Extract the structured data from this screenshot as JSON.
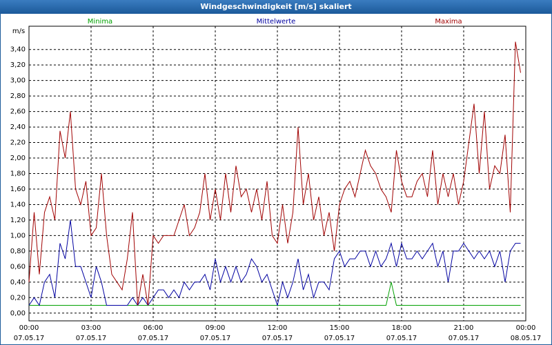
{
  "chart_data": {
    "type": "line",
    "title": "Windgeschwindigkeit [m/s] skaliert",
    "y_unit": "m/s",
    "x": [
      0,
      0.25,
      0.5,
      0.75,
      1,
      1.25,
      1.5,
      1.75,
      2,
      2.25,
      2.5,
      2.75,
      3,
      3.25,
      3.5,
      3.75,
      4,
      4.25,
      4.5,
      4.75,
      5,
      5.25,
      5.5,
      5.75,
      6,
      6.25,
      6.5,
      6.75,
      7,
      7.25,
      7.5,
      7.75,
      8,
      8.25,
      8.5,
      8.75,
      9,
      9.25,
      9.5,
      9.75,
      10,
      10.25,
      10.5,
      10.75,
      11,
      11.25,
      11.5,
      11.75,
      12,
      12.25,
      12.5,
      12.75,
      13,
      13.25,
      13.5,
      13.75,
      14,
      14.25,
      14.5,
      14.75,
      15,
      15.25,
      15.5,
      15.75,
      16,
      16.25,
      16.5,
      16.75,
      17,
      17.25,
      17.5,
      17.75,
      18,
      18.25,
      18.5,
      18.75,
      19,
      19.25,
      19.5,
      19.75,
      20,
      20.25,
      20.5,
      20.75,
      21,
      21.25,
      21.5,
      21.75,
      22,
      22.25,
      22.5,
      22.75,
      23,
      23.25,
      23.5,
      23.75
    ],
    "series": [
      {
        "name": "Minima",
        "color": "#00a000",
        "values": [
          0.1,
          0.1,
          0.1,
          0.1,
          0.1,
          0.1,
          0.1,
          0.1,
          0.1,
          0.1,
          0.1,
          0.1,
          0.1,
          0.1,
          0.1,
          0.1,
          0.1,
          0.1,
          0.1,
          0.1,
          0.1,
          0.1,
          0.1,
          0.1,
          0.1,
          0.1,
          0.1,
          0.1,
          0.1,
          0.1,
          0.1,
          0.1,
          0.1,
          0.1,
          0.1,
          0.1,
          0.1,
          0.1,
          0.1,
          0.1,
          0.1,
          0.1,
          0.1,
          0.1,
          0.1,
          0.1,
          0.1,
          0.1,
          0.1,
          0.1,
          0.1,
          0.1,
          0.1,
          0.1,
          0.1,
          0.1,
          0.1,
          0.1,
          0.1,
          0.1,
          0.1,
          0.1,
          0.1,
          0.1,
          0.1,
          0.1,
          0.1,
          0.1,
          0.1,
          0.1,
          0.4,
          0.1,
          0.1,
          0.1,
          0.1,
          0.1,
          0.1,
          0.1,
          0.1,
          0.1,
          0.1,
          0.1,
          0.1,
          0.1,
          0.1,
          0.1,
          0.1,
          0.1,
          0.1,
          0.1,
          0.1,
          0.1,
          0.1,
          0.1,
          0.1,
          0.1
        ]
      },
      {
        "name": "Mittelwerte",
        "color": "#0000a0",
        "values": [
          0.1,
          0.2,
          0.1,
          0.4,
          0.5,
          0.2,
          0.9,
          0.7,
          1.2,
          0.6,
          0.6,
          0.4,
          0.2,
          0.6,
          0.4,
          0.1,
          0.1,
          0.1,
          0.1,
          0.1,
          0.2,
          0.1,
          0.2,
          0.1,
          0.2,
          0.3,
          0.3,
          0.2,
          0.3,
          0.2,
          0.4,
          0.3,
          0.4,
          0.4,
          0.5,
          0.3,
          0.7,
          0.4,
          0.6,
          0.4,
          0.6,
          0.4,
          0.5,
          0.7,
          0.6,
          0.4,
          0.5,
          0.3,
          0.1,
          0.4,
          0.2,
          0.4,
          0.7,
          0.3,
          0.5,
          0.2,
          0.4,
          0.4,
          0.3,
          0.7,
          0.8,
          0.6,
          0.7,
          0.7,
          0.8,
          0.8,
          0.6,
          0.8,
          0.6,
          0.7,
          0.9,
          0.6,
          0.9,
          0.7,
          0.7,
          0.8,
          0.7,
          0.8,
          0.9,
          0.6,
          0.8,
          0.4,
          0.8,
          0.8,
          0.9,
          0.8,
          0.7,
          0.8,
          0.7,
          0.8,
          0.6,
          0.8,
          0.4,
          0.8,
          0.9,
          0.9
        ]
      },
      {
        "name": "Maxima",
        "color": "#a00000",
        "values": [
          0.4,
          1.3,
          0.5,
          1.3,
          1.5,
          1.2,
          2.35,
          2.0,
          2.6,
          1.6,
          1.4,
          1.7,
          1.0,
          1.1,
          1.8,
          1.0,
          0.5,
          0.4,
          0.3,
          0.7,
          1.3,
          0.1,
          0.5,
          0.1,
          1.0,
          0.9,
          1.0,
          1.0,
          1.0,
          1.2,
          1.4,
          1.0,
          1.1,
          1.3,
          1.8,
          1.2,
          1.6,
          1.2,
          1.8,
          1.3,
          1.9,
          1.5,
          1.6,
          1.3,
          1.6,
          1.2,
          1.7,
          1.0,
          0.9,
          1.4,
          0.9,
          1.3,
          2.4,
          1.4,
          1.8,
          1.2,
          1.5,
          1.0,
          1.3,
          0.8,
          1.4,
          1.6,
          1.7,
          1.5,
          1.8,
          2.1,
          1.9,
          1.8,
          1.6,
          1.5,
          1.3,
          2.1,
          1.7,
          1.5,
          1.5,
          1.7,
          1.8,
          1.5,
          2.1,
          1.4,
          1.8,
          1.5,
          1.8,
          1.4,
          1.7,
          2.2,
          2.7,
          1.8,
          2.6,
          1.6,
          1.9,
          1.8,
          2.3,
          1.3,
          3.5,
          3.1
        ]
      }
    ],
    "xlim": [
      0,
      24
    ],
    "xticks": [
      {
        "value": 0,
        "label": "00:00",
        "date": "07.05.17"
      },
      {
        "value": 3,
        "label": "03:00",
        "date": "07.05.17"
      },
      {
        "value": 6,
        "label": "06:00",
        "date": "07.05.17"
      },
      {
        "value": 9,
        "label": "09:00",
        "date": "07.05.17"
      },
      {
        "value": 12,
        "label": "12:00",
        "date": "07.05.17"
      },
      {
        "value": 15,
        "label": "15:00",
        "date": "07.05.17"
      },
      {
        "value": 18,
        "label": "18:00",
        "date": "07.05.17"
      },
      {
        "value": 21,
        "label": "21:00",
        "date": "07.05.17"
      },
      {
        "value": 24,
        "label": "00:00",
        "date": "08.05.17"
      }
    ],
    "ylim": [
      -0.1,
      3.7
    ],
    "yticks": [
      {
        "value": 0,
        "label": "0,00"
      },
      {
        "value": 0.2,
        "label": "0,20"
      },
      {
        "value": 0.4,
        "label": "0,40"
      },
      {
        "value": 0.6,
        "label": "0,60"
      },
      {
        "value": 0.8,
        "label": "0,80"
      },
      {
        "value": 1.0,
        "label": "1,00"
      },
      {
        "value": 1.2,
        "label": "1,20"
      },
      {
        "value": 1.4,
        "label": "1,40"
      },
      {
        "value": 1.6,
        "label": "1,60"
      },
      {
        "value": 1.8,
        "label": "1,80"
      },
      {
        "value": 2.0,
        "label": "2,00"
      },
      {
        "value": 2.2,
        "label": "2,20"
      },
      {
        "value": 2.4,
        "label": "2,40"
      },
      {
        "value": 2.6,
        "label": "2,60"
      },
      {
        "value": 2.8,
        "label": "2,80"
      },
      {
        "value": 3.0,
        "label": "3,00"
      },
      {
        "value": 3.2,
        "label": "3,20"
      },
      {
        "value": 3.4,
        "label": "3,40"
      }
    ],
    "grid": true
  }
}
